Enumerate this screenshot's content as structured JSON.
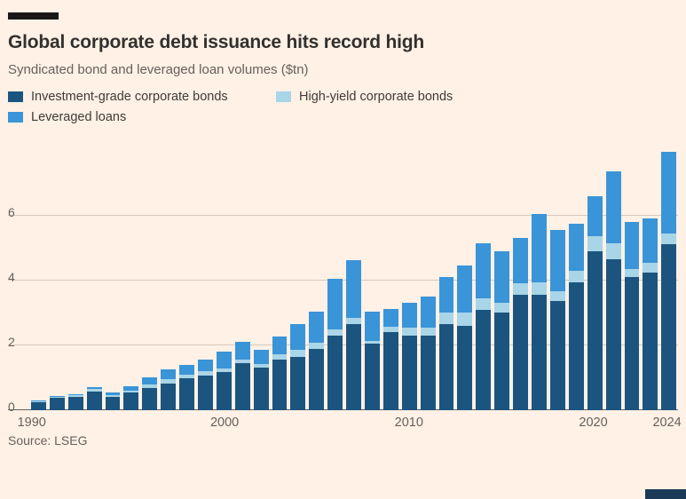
{
  "source": "Source: LSEG",
  "colors": {
    "background": "#fff1e5",
    "investment_grade": "#1b557f",
    "high_yield": "#a8d5e8",
    "leveraged_loans": "#3a94d8",
    "gridline": "#d4c9be",
    "baseline": "#66605c",
    "top_bar": "#1a1817"
  },
  "chart_data": {
    "type": "bar",
    "stacked": true,
    "title": "Global corporate debt issuance hits record high",
    "subtitle": "Syndicated bond and leveraged loan volumes ($tn)",
    "xlabel": "",
    "ylabel": "$tn",
    "ylim": [
      0,
      8.2
    ],
    "yticks": [
      0,
      2,
      4,
      6
    ],
    "grid": "horizontal",
    "legend_position": "top",
    "categories": [
      1990,
      1991,
      1992,
      1993,
      1994,
      1995,
      1996,
      1997,
      1998,
      1999,
      2000,
      2001,
      2002,
      2003,
      2004,
      2005,
      2006,
      2007,
      2008,
      2009,
      2010,
      2011,
      2012,
      2013,
      2014,
      2015,
      2016,
      2017,
      2018,
      2019,
      2020,
      2021,
      2022,
      2023,
      2024
    ],
    "xticks": [
      {
        "label": "1990",
        "index": 0
      },
      {
        "label": "2000",
        "index": 10
      },
      {
        "label": "2010",
        "index": 20
      },
      {
        "label": "2020",
        "index": 30
      },
      {
        "label": "2024",
        "index": 34
      }
    ],
    "series": [
      {
        "name": "Investment-grade corporate bonds",
        "color": "#1b557f",
        "values": [
          0.25,
          0.38,
          0.42,
          0.58,
          0.42,
          0.55,
          0.68,
          0.82,
          0.98,
          1.08,
          1.18,
          1.45,
          1.32,
          1.55,
          1.65,
          1.9,
          2.3,
          2.65,
          2.05,
          2.4,
          2.3,
          2.3,
          2.65,
          2.6,
          3.1,
          3.0,
          3.55,
          3.55,
          3.35,
          3.95,
          4.9,
          4.65,
          4.1,
          4.25,
          5.1
        ]
      },
      {
        "name": "High-yield corporate bonds",
        "color": "#a8d5e8",
        "values": [
          0.03,
          0.04,
          0.05,
          0.08,
          0.05,
          0.06,
          0.1,
          0.13,
          0.12,
          0.12,
          0.1,
          0.12,
          0.1,
          0.18,
          0.2,
          0.18,
          0.2,
          0.18,
          0.08,
          0.18,
          0.25,
          0.25,
          0.35,
          0.4,
          0.35,
          0.3,
          0.35,
          0.4,
          0.3,
          0.35,
          0.45,
          0.5,
          0.25,
          0.3,
          0.35
        ]
      },
      {
        "name": "Leveraged loans",
        "color": "#3a94d8",
        "values": [
          0.02,
          0.03,
          0.03,
          0.04,
          0.08,
          0.14,
          0.22,
          0.3,
          0.3,
          0.35,
          0.52,
          0.53,
          0.45,
          0.55,
          0.8,
          0.95,
          1.55,
          1.8,
          0.9,
          0.55,
          0.75,
          0.95,
          1.1,
          1.45,
          1.7,
          1.6,
          1.4,
          2.1,
          1.9,
          1.45,
          1.25,
          2.2,
          1.45,
          1.35,
          2.5
        ]
      }
    ],
    "legend_order_note": "legend row1: investment-grade, high-yield; row2: leveraged loans"
  }
}
